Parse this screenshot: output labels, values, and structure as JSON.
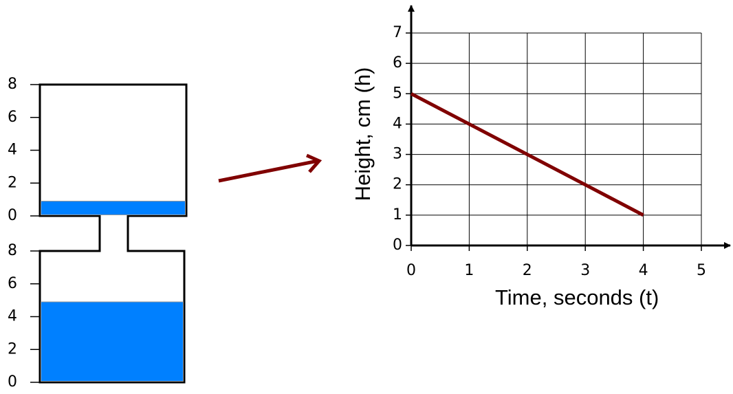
{
  "chart_data": {
    "type": "line",
    "x": [
      0,
      1,
      2,
      3,
      4
    ],
    "series": [
      {
        "color": "#800000",
        "values": [
          5,
          4,
          3,
          2,
          1
        ]
      }
    ],
    "xlabel": "Time, seconds (t)",
    "ylabel": "Height, cm (h)",
    "xlim": [
      0,
      5
    ],
    "ylim": [
      0,
      7
    ],
    "xticks": [
      0,
      1,
      2,
      3,
      4,
      5
    ],
    "yticks": [
      0,
      1,
      2,
      3,
      4,
      5,
      6,
      7
    ],
    "grid": true
  },
  "diagram": {
    "top_container": {
      "lim": [
        0,
        8
      ],
      "ticks": [
        0,
        2,
        4,
        6,
        8
      ],
      "water_level": 0.9
    },
    "bottom_container": {
      "lim": [
        0,
        8
      ],
      "ticks": [
        0,
        2,
        4,
        6,
        8
      ],
      "water_level": 4.9
    },
    "water_color": "#0080ff"
  }
}
